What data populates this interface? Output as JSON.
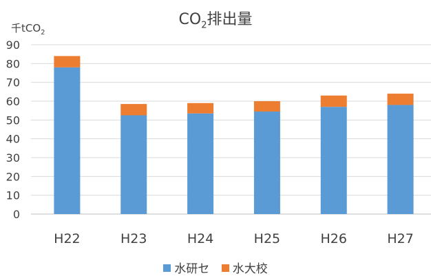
{
  "chart_data": {
    "type": "bar",
    "stacked": true,
    "title_main": "CO",
    "title_sub": "2",
    "title_rest": "排出量",
    "ylabel_main": "千tCO",
    "ylabel_sub": "2",
    "xlabel": "",
    "categories": [
      "H22",
      "H23",
      "H24",
      "H25",
      "H26",
      "H27"
    ],
    "series": [
      {
        "name": "水研セ",
        "values": [
          78,
          52.5,
          53.5,
          54.5,
          57,
          58
        ],
        "color": "#5b9bd5"
      },
      {
        "name": "水大校",
        "values": [
          6,
          6,
          5.5,
          5.5,
          6,
          6
        ],
        "color": "#ed7d31"
      }
    ],
    "ylim": [
      0,
      90
    ],
    "yticks": [
      0,
      10,
      20,
      30,
      40,
      50,
      60,
      70,
      80,
      90
    ],
    "grid": true,
    "legend_position": "bottom"
  }
}
